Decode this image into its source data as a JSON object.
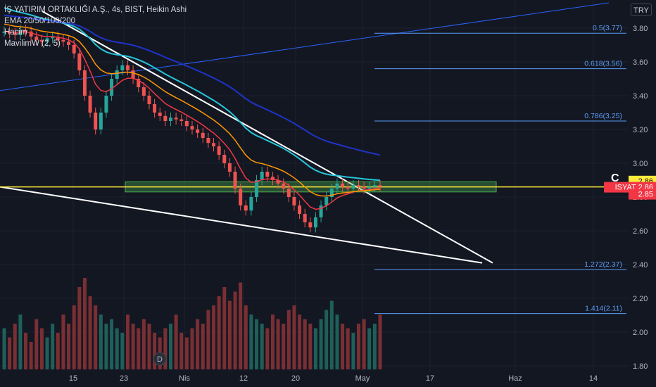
{
  "legend": {
    "symbol_line": "İŞ YATIRIM ORTAKLIĞI A.Ş., 4s, BIST, Heikin Ashi",
    "ema_line": "EMA 20/50/100/200",
    "volume_line": "Hacim",
    "mavilim_line": "MavilimW (2, 5)"
  },
  "currency": "TRY",
  "colors": {
    "background": "#131722",
    "up": "#26a69a",
    "down": "#ef5350",
    "ema20": "#f23645",
    "ema50": "#ff9800",
    "ema100": "#26c6da",
    "ema200": "#1e33c7",
    "mavilim": "#ffffff",
    "fib": "#5b9cf6",
    "support_zone": "#4caf50",
    "support_line": "#ffeb3b"
  },
  "chart_data": {
    "type": "candlestick",
    "y_axis": {
      "range": [
        1.8,
        3.9
      ],
      "ticks": [
        "3.80",
        "3.60",
        "3.40",
        "3.20",
        "3.00",
        "2.80",
        "2.60",
        "2.40",
        "2.20",
        "2.00",
        "1.80"
      ]
    },
    "x_axis": {
      "ticks": [
        "15",
        "23",
        "Nis",
        "12",
        "20",
        "May",
        "17",
        "Haz",
        "14"
      ]
    },
    "price_labels": [
      {
        "text": "2.86",
        "color": "#ffeb3b",
        "text_color": "#131722"
      },
      {
        "text": "ISYAT  2.86",
        "color": "#f23645",
        "text_color": "#ffffff"
      },
      {
        "text": "2.85",
        "color": "#f23645",
        "text_color": "#ffffff"
      }
    ],
    "fib_levels": [
      {
        "label": "0.5(3.77)",
        "value": 3.77
      },
      {
        "label": "0.618(3.56)",
        "value": 3.56
      },
      {
        "label": "0.786(3.25)",
        "value": 3.25
      },
      {
        "label": "1.272(2.37)",
        "value": 2.37
      },
      {
        "label": "1.414(2.11)",
        "value": 2.11
      }
    ],
    "support_zone": [
      2.83,
      2.89
    ],
    "support_line": 2.86,
    "close_series": [
      3.78,
      3.77,
      3.76,
      3.79,
      3.78,
      3.75,
      3.73,
      3.72,
      3.74,
      3.75,
      3.73,
      3.72,
      3.7,
      3.65,
      3.55,
      3.4,
      3.3,
      3.2,
      3.3,
      3.4,
      3.5,
      3.55,
      3.58,
      3.55,
      3.5,
      3.45,
      3.4,
      3.35,
      3.3,
      3.28,
      3.25,
      3.27,
      3.26,
      3.25,
      3.22,
      3.2,
      3.18,
      3.15,
      3.12,
      3.1,
      3.05,
      3.0,
      2.95,
      2.85,
      2.75,
      2.72,
      2.8,
      2.9,
      2.95,
      2.92,
      2.9,
      2.88,
      2.85,
      2.8,
      2.75,
      2.7,
      2.65,
      2.62,
      2.68,
      2.75,
      2.8,
      2.85,
      2.88,
      2.86,
      2.85,
      2.87,
      2.86,
      2.85,
      2.86,
      2.87,
      2.86
    ],
    "volume_relative": [
      0.45,
      0.35,
      0.5,
      0.6,
      0.4,
      0.3,
      0.55,
      0.45,
      0.35,
      0.5,
      0.4,
      0.6,
      0.5,
      0.7,
      0.9,
      1.0,
      0.8,
      0.7,
      0.6,
      0.5,
      0.55,
      0.45,
      0.4,
      0.6,
      0.5,
      0.45,
      0.55,
      0.5,
      0.4,
      0.35,
      0.45,
      0.5,
      0.6,
      0.4,
      0.35,
      0.45,
      0.55,
      0.5,
      0.65,
      0.7,
      0.8,
      0.9,
      0.75,
      0.85,
      0.95,
      0.7,
      0.6,
      0.55,
      0.5,
      0.45,
      0.6,
      0.55,
      0.5,
      0.65,
      0.7,
      0.6,
      0.55,
      0.5,
      0.45,
      0.55,
      0.65,
      0.75,
      0.6,
      0.5,
      0.45,
      0.4,
      0.5,
      0.55,
      0.45,
      0.5,
      0.6
    ],
    "event_marker": "D",
    "annotation": "C"
  }
}
